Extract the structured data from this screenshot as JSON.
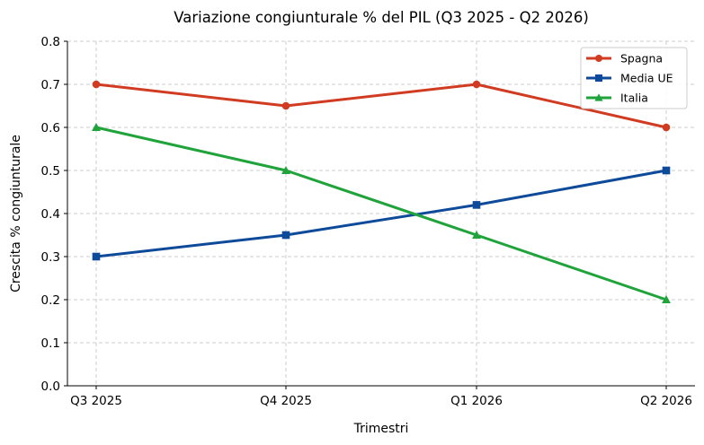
{
  "chart_data": {
    "type": "line",
    "title": "Variazione congiunturale % del PIL (Q3 2025 - Q2 2026)",
    "xlabel": "Trimestri",
    "ylabel": "Crescita % congiunturale",
    "categories": [
      "Q3 2025",
      "Q4 2025",
      "Q1 2026",
      "Q2 2026"
    ],
    "ylim": [
      0,
      0.8
    ],
    "yticks": [
      "0.0",
      "0.1",
      "0.2",
      "0.3",
      "0.4",
      "0.5",
      "0.6",
      "0.7",
      "0.8"
    ],
    "grid": true,
    "legend_position": "top-right",
    "series": [
      {
        "name": "Spagna",
        "values": [
          0.7,
          0.65,
          0.7,
          0.6
        ],
        "color": "#d13b21",
        "marker": "circle"
      },
      {
        "name": "Media UE",
        "values": [
          0.3,
          0.35,
          0.42,
          0.5
        ],
        "color": "#0e4a9a",
        "marker": "square"
      },
      {
        "name": "Italia",
        "values": [
          0.6,
          0.5,
          0.35,
          0.2
        ],
        "color": "#1fa33a",
        "marker": "triangle"
      }
    ]
  }
}
